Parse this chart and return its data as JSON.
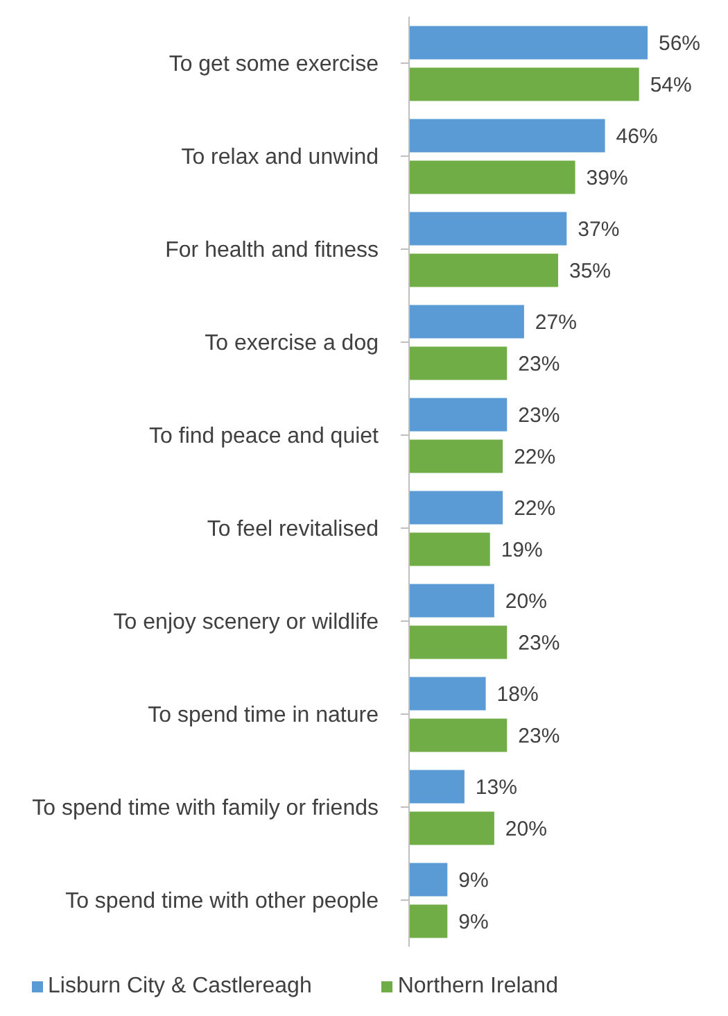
{
  "chart_data": {
    "type": "bar",
    "orientation": "horizontal",
    "categories": [
      "To get some exercise",
      "To relax and unwind",
      "For health and fitness",
      "To exercise a dog",
      "To find peace and quiet",
      "To feel revitalised",
      "To enjoy scenery or wildlife",
      "To spend time in nature",
      "To spend time with family or friends",
      "To spend time with other people"
    ],
    "series": [
      {
        "name": "Lisburn City & Castlereagh",
        "color": "#5b9bd5",
        "values": [
          56,
          46,
          37,
          27,
          23,
          22,
          20,
          18,
          13,
          9
        ],
        "value_labels": [
          "56%",
          "46%",
          "37%",
          "27%",
          "23%",
          "22%",
          "20%",
          "18%",
          "13%",
          "9%"
        ]
      },
      {
        "name": "Northern Ireland",
        "color": "#70ad47",
        "values": [
          54,
          39,
          35,
          23,
          22,
          19,
          23,
          23,
          20,
          9
        ],
        "value_labels": [
          "54%",
          "39%",
          "35%",
          "23%",
          "22%",
          "19%",
          "23%",
          "23%",
          "20%",
          "9%"
        ]
      }
    ],
    "legend": "bottom",
    "grid": false
  }
}
